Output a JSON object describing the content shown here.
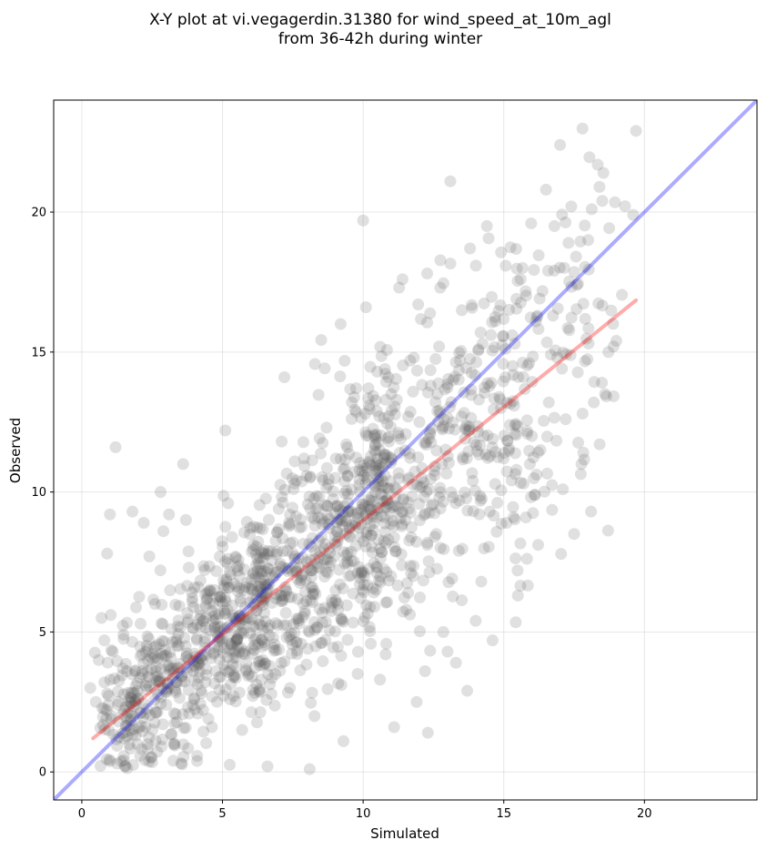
{
  "chart_data": {
    "type": "scatter",
    "title_lines": [
      "X-Y plot at vi.vegagerdin.31380 for wind_speed_at_10m_agl",
      "from 36-42h during winter"
    ],
    "xlabel": "Simulated",
    "ylabel": "Observed",
    "xlim": [
      -1,
      24
    ],
    "ylim": [
      -1,
      24
    ],
    "xticks": [
      0,
      5,
      10,
      15,
      20
    ],
    "yticks": [
      0,
      5,
      10,
      15,
      20
    ],
    "grid": true,
    "legend": "none",
    "identity_line": {
      "x": [
        -1,
        24
      ],
      "y": [
        -1,
        24
      ],
      "color": "#0000ff"
    },
    "fit_line": {
      "x": [
        0.4,
        19.7
      ],
      "y": [
        1.2,
        16.85
      ],
      "color": "#ff0000"
    },
    "point_color": "#555555",
    "series": [
      {
        "points": [
          [
            0.3,
            3.0
          ],
          [
            0.5,
            2.5
          ],
          [
            0.6,
            4.0
          ],
          [
            0.8,
            3.2
          ],
          [
            0.9,
            2.8
          ],
          [
            1.0,
            9.2
          ],
          [
            0.9,
            7.8
          ],
          [
            1.2,
            11.6
          ],
          [
            0.8,
            4.7
          ],
          [
            1.1,
            4.3
          ],
          [
            0.7,
            5.5
          ],
          [
            1.3,
            1.8
          ],
          [
            1.5,
            2.2
          ],
          [
            1.6,
            3.6
          ],
          [
            1.8,
            9.3
          ],
          [
            2.0,
            2.6
          ],
          [
            2.2,
            8.9
          ],
          [
            2.4,
            7.7
          ],
          [
            2.6,
            6.0
          ],
          [
            2.8,
            10.0
          ],
          [
            2.9,
            8.6
          ],
          [
            3.1,
            9.2
          ],
          [
            3.3,
            3.0
          ],
          [
            3.4,
            4.5
          ],
          [
            3.6,
            11.0
          ],
          [
            3.7,
            9.0
          ],
          [
            3.8,
            7.3
          ],
          [
            4.0,
            2.6
          ],
          [
            4.2,
            5.8
          ],
          [
            4.5,
            1.9
          ],
          [
            4.7,
            6.5
          ],
          [
            4.9,
            4.0
          ],
          [
            5.1,
            12.2
          ],
          [
            5.2,
            9.6
          ],
          [
            5.4,
            3.4
          ],
          [
            5.6,
            7.0
          ],
          [
            5.7,
            1.5
          ],
          [
            5.9,
            5.5
          ],
          [
            6.1,
            8.1
          ],
          [
            6.3,
            2.9
          ],
          [
            6.5,
            6.2
          ],
          [
            6.6,
            0.2
          ],
          [
            6.8,
            4.8
          ],
          [
            7.0,
            9.4
          ],
          [
            7.1,
            6.3
          ],
          [
            7.2,
            14.1
          ],
          [
            7.4,
            3.0
          ],
          [
            7.5,
            8.2
          ],
          [
            7.7,
            5.4
          ],
          [
            7.9,
            11.2
          ],
          [
            8.0,
            7.5
          ],
          [
            8.1,
            0.1
          ],
          [
            8.2,
            6.6
          ],
          [
            8.4,
            9.1
          ],
          [
            8.5,
            4.6
          ],
          [
            8.7,
            12.3
          ],
          [
            8.8,
            8.0
          ],
          [
            9.0,
            10.5
          ],
          [
            9.1,
            6.0
          ],
          [
            9.2,
            16.0
          ],
          [
            9.3,
            1.1
          ],
          [
            9.4,
            11.7
          ],
          [
            9.5,
            8.7
          ],
          [
            9.6,
            13.2
          ],
          [
            9.8,
            7.1
          ],
          [
            10.0,
            19.7
          ],
          [
            10.1,
            16.6
          ],
          [
            10.2,
            12.0
          ],
          [
            10.3,
            9.7
          ],
          [
            10.4,
            5.9
          ],
          [
            10.5,
            14.3
          ],
          [
            10.6,
            3.3
          ],
          [
            10.7,
            10.9
          ],
          [
            10.9,
            8.3
          ],
          [
            11.0,
            13.5
          ],
          [
            11.1,
            1.6
          ],
          [
            11.3,
            11.4
          ],
          [
            11.4,
            17.6
          ],
          [
            11.5,
            9.0
          ],
          [
            11.6,
            6.4
          ],
          [
            11.8,
            14.8
          ],
          [
            11.9,
            2.5
          ],
          [
            12.0,
            12.5
          ],
          [
            12.1,
            10.2
          ],
          [
            12.3,
            1.4
          ],
          [
            12.4,
            13.8
          ],
          [
            12.6,
            8.5
          ],
          [
            12.7,
            15.2
          ],
          [
            12.8,
            11.0
          ],
          [
            13.0,
            4.3
          ],
          [
            13.1,
            21.1
          ],
          [
            13.2,
            14.0
          ],
          [
            13.4,
            7.9
          ],
          [
            13.5,
            12.7
          ],
          [
            13.7,
            2.9
          ],
          [
            13.8,
            18.7
          ],
          [
            13.9,
            10.4
          ],
          [
            14.1,
            15.1
          ],
          [
            14.2,
            6.8
          ],
          [
            14.3,
            12.0
          ],
          [
            14.4,
            19.5
          ],
          [
            14.5,
            9.3
          ],
          [
            14.6,
            4.7
          ],
          [
            14.7,
            16.1
          ],
          [
            14.9,
            13.0
          ],
          [
            15.0,
            11.2
          ],
          [
            15.1,
            8.9
          ],
          [
            15.3,
            15.6
          ],
          [
            15.4,
            12.4
          ],
          [
            15.6,
            17.6
          ],
          [
            15.7,
            10.3
          ],
          [
            15.9,
            14.6
          ],
          [
            16.0,
            12.0
          ],
          [
            16.2,
            16.3
          ],
          [
            16.3,
            11.5
          ],
          [
            16.5,
            20.8
          ],
          [
            16.6,
            13.2
          ],
          [
            16.8,
            19.5
          ],
          [
            16.9,
            14.8
          ],
          [
            17.0,
            22.4
          ],
          [
            17.1,
            10.1
          ],
          [
            17.2,
            12.6
          ],
          [
            17.3,
            18.9
          ],
          [
            17.4,
            20.2
          ],
          [
            17.5,
            8.5
          ],
          [
            17.6,
            17.4
          ],
          [
            17.8,
            12.8
          ],
          [
            18.0,
            19.0
          ],
          [
            18.1,
            9.3
          ],
          [
            18.2,
            13.2
          ],
          [
            18.4,
            20.9
          ],
          [
            18.5,
            20.4
          ],
          [
            18.6,
            13.5
          ],
          [
            18.9,
            15.2
          ],
          [
            19.0,
            15.4
          ],
          [
            19.6,
            19.9
          ],
          [
            19.7,
            22.9
          ],
          [
            15.5,
            6.3
          ],
          [
            16.1,
            9.9
          ],
          [
            12.2,
            3.6
          ],
          [
            11.7,
            7.1
          ],
          [
            14.0,
            5.4
          ],
          [
            13.3,
            3.9
          ],
          [
            10.8,
            4.2
          ]
        ]
      }
    ]
  }
}
